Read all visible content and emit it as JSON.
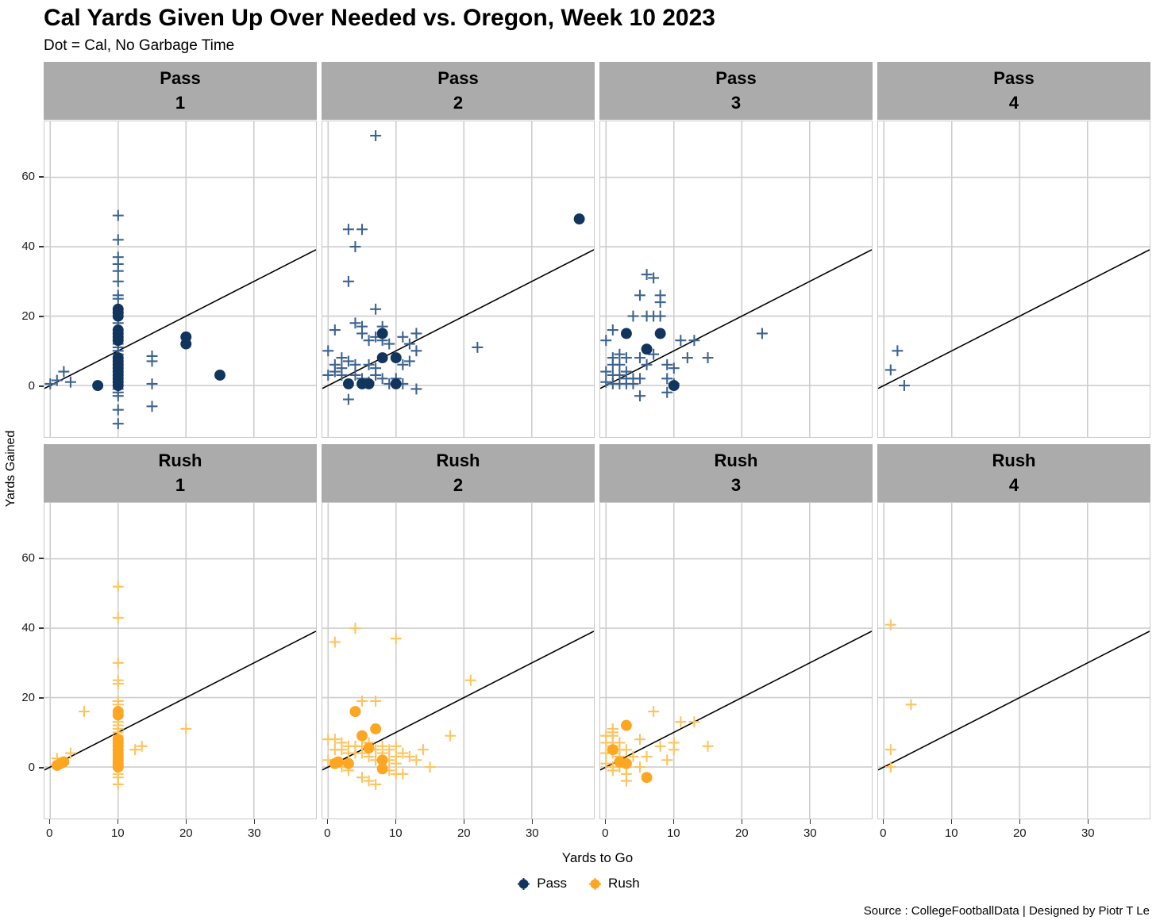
{
  "title": "Cal Yards Given Up Over Needed vs. Oregon, Week 10 2023",
  "subtitle": "Dot = Cal, No Garbage Time",
  "caption": "Source : CollegeFootballData | Designed by Piotr T Le",
  "colors": {
    "pass_dot": "#12355E",
    "pass_cross": "#3D6390",
    "rush_dot": "#FDA621",
    "rush_cross": "#FCC45F",
    "strip_bg": "#ABABAB",
    "grid": "#CDCDCD",
    "panel_border": "#C9C9C9",
    "ref_line": "#000000"
  },
  "legend": [
    {
      "label": "Pass",
      "color": "#12355E"
    },
    {
      "label": "Rush",
      "color": "#FDA621"
    }
  ],
  "chart_data": {
    "type": "scatter",
    "title": "Cal Yards Given Up Over Needed vs. Oregon, Week 10 2023",
    "subtitle": "Dot = Cal, No Garbage Time",
    "xlabel": "Yards to Go",
    "ylabel": "Yards Gained",
    "x_ticks": [
      0,
      10,
      20,
      30
    ],
    "y_ticks": [
      0,
      20,
      40,
      60
    ],
    "x_domain": [
      -0.85,
      39.15
    ],
    "y_domain": [
      -14.8,
      76.1
    ],
    "reference_line": "y = x (identity, yards gained = yards to go)",
    "marker_legend": "cross = all plays, dot = Cal no-garbage-time plays",
    "grid": true,
    "facet_rows": [
      "Pass",
      "Rush"
    ],
    "facet_cols": [
      "1",
      "2",
      "3",
      "4"
    ],
    "facets": [
      {
        "group": "Pass",
        "down": "1",
        "crosses": [
          [
            0,
            0.5
          ],
          [
            1,
            1.5
          ],
          [
            2,
            4
          ],
          [
            3,
            1
          ],
          [
            10,
            49
          ],
          [
            10,
            42
          ],
          [
            10,
            37
          ],
          [
            10,
            35
          ],
          [
            10,
            33
          ],
          [
            10,
            30
          ],
          [
            10,
            26
          ],
          [
            10,
            25
          ],
          [
            10,
            18
          ],
          [
            10,
            12
          ],
          [
            10,
            11
          ],
          [
            10,
            10
          ],
          [
            10,
            9
          ],
          [
            10,
            -1
          ],
          [
            10,
            -2
          ],
          [
            10,
            -3
          ],
          [
            10,
            -7
          ],
          [
            10,
            -11
          ],
          [
            15,
            8.5
          ],
          [
            15,
            7
          ],
          [
            15,
            0.5
          ],
          [
            15,
            -6
          ]
        ],
        "dots": [
          [
            7,
            0
          ],
          [
            10,
            22
          ],
          [
            10,
            21
          ],
          [
            10,
            20
          ],
          [
            10,
            16
          ],
          [
            10,
            15
          ],
          [
            10,
            14
          ],
          [
            10,
            13
          ],
          [
            10,
            8
          ],
          [
            10,
            7
          ],
          [
            10,
            6
          ],
          [
            10,
            5
          ],
          [
            10,
            4
          ],
          [
            10,
            3
          ],
          [
            10,
            2
          ],
          [
            10,
            1
          ],
          [
            10,
            0
          ],
          [
            20,
            14
          ],
          [
            20,
            12
          ],
          [
            25,
            3
          ]
        ]
      },
      {
        "group": "Pass",
        "down": "2",
        "crosses": [
          [
            7,
            72
          ],
          [
            3,
            45
          ],
          [
            5,
            45
          ],
          [
            4,
            40
          ],
          [
            3,
            30
          ],
          [
            7,
            22
          ],
          [
            1,
            16
          ],
          [
            4,
            18
          ],
          [
            5,
            17
          ],
          [
            5,
            15
          ],
          [
            6,
            13
          ],
          [
            7,
            14
          ],
          [
            8,
            17
          ],
          [
            8,
            13
          ],
          [
            9,
            12
          ],
          [
            11,
            14
          ],
          [
            12,
            12
          ],
          [
            13,
            15
          ],
          [
            13,
            10
          ],
          [
            22,
            11
          ],
          [
            0,
            10
          ],
          [
            0,
            3
          ],
          [
            1,
            6
          ],
          [
            1,
            4
          ],
          [
            2,
            5
          ],
          [
            2,
            3
          ],
          [
            2,
            8
          ],
          [
            3,
            7
          ],
          [
            4,
            6
          ],
          [
            4,
            3
          ],
          [
            5,
            2
          ],
          [
            6,
            1
          ],
          [
            6,
            6
          ],
          [
            7,
            5
          ],
          [
            7,
            3
          ],
          [
            8,
            2
          ],
          [
            9,
            0.5
          ],
          [
            10,
            2
          ],
          [
            11,
            6
          ],
          [
            11,
            0.5
          ],
          [
            12,
            7
          ],
          [
            3,
            -4
          ],
          [
            13,
            -1
          ]
        ],
        "dots": [
          [
            3,
            0.5
          ],
          [
            5,
            0.5
          ],
          [
            6,
            0.5
          ],
          [
            8,
            15
          ],
          [
            8,
            8
          ],
          [
            10,
            8
          ],
          [
            10,
            0.5
          ],
          [
            37,
            48
          ]
        ]
      },
      {
        "group": "Pass",
        "down": "3",
        "crosses": [
          [
            6,
            32
          ],
          [
            7,
            31
          ],
          [
            5,
            26
          ],
          [
            8,
            26
          ],
          [
            8,
            24
          ],
          [
            4,
            20
          ],
          [
            6,
            20
          ],
          [
            7,
            20
          ],
          [
            8,
            20
          ],
          [
            1,
            16
          ],
          [
            0,
            13
          ],
          [
            23,
            15
          ],
          [
            2,
            9
          ],
          [
            1,
            8
          ],
          [
            3,
            8
          ],
          [
            1,
            6
          ],
          [
            2,
            6
          ],
          [
            5,
            8
          ],
          [
            6,
            6
          ],
          [
            7,
            9
          ],
          [
            9,
            6
          ],
          [
            11,
            13
          ],
          [
            13,
            13
          ],
          [
            12,
            8
          ],
          [
            15,
            8
          ],
          [
            10,
            5
          ],
          [
            9,
            2
          ],
          [
            0,
            4
          ],
          [
            1,
            3
          ],
          [
            2,
            3
          ],
          [
            3,
            4
          ],
          [
            3,
            2
          ],
          [
            4,
            2
          ],
          [
            5,
            2
          ],
          [
            0,
            1
          ],
          [
            1,
            0.5
          ],
          [
            2,
            0.5
          ],
          [
            3,
            0.5
          ],
          [
            4,
            0.5
          ],
          [
            5,
            -3
          ],
          [
            9,
            -2
          ],
          [
            10,
            0.5
          ]
        ],
        "dots": [
          [
            3,
            15
          ],
          [
            8,
            15
          ],
          [
            6,
            10.5
          ],
          [
            10,
            0
          ]
        ]
      },
      {
        "group": "Pass",
        "down": "4",
        "crosses": [
          [
            2,
            10
          ],
          [
            1,
            4.5
          ],
          [
            3,
            0
          ]
        ],
        "dots": []
      },
      {
        "group": "Rush",
        "down": "1",
        "crosses": [
          [
            10,
            52
          ],
          [
            10,
            43
          ],
          [
            10,
            30
          ],
          [
            10,
            25
          ],
          [
            10,
            24
          ],
          [
            10,
            19
          ],
          [
            10,
            18
          ],
          [
            10,
            13
          ],
          [
            10,
            12
          ],
          [
            10,
            11
          ],
          [
            10,
            10
          ],
          [
            10,
            9
          ],
          [
            10,
            -2
          ],
          [
            10,
            -3
          ],
          [
            10,
            -5
          ],
          [
            5,
            16
          ],
          [
            1,
            2.5
          ],
          [
            3,
            4
          ],
          [
            1,
            0.5
          ],
          [
            12.5,
            5
          ],
          [
            13.5,
            6
          ],
          [
            20,
            11
          ]
        ],
        "dots": [
          [
            1,
            0.5
          ],
          [
            1.5,
            1
          ],
          [
            2,
            1.5
          ],
          [
            10,
            16
          ],
          [
            10,
            15
          ],
          [
            10,
            8
          ],
          [
            10,
            7
          ],
          [
            10,
            6
          ],
          [
            10,
            5
          ],
          [
            10,
            4
          ],
          [
            10,
            3
          ],
          [
            10,
            2
          ],
          [
            10,
            1
          ],
          [
            10,
            0.5
          ],
          [
            10,
            0
          ]
        ]
      },
      {
        "group": "Rush",
        "down": "2",
        "crosses": [
          [
            1,
            36
          ],
          [
            4,
            40
          ],
          [
            10,
            37
          ],
          [
            21,
            25
          ],
          [
            18,
            9
          ],
          [
            5,
            19
          ],
          [
            7,
            19
          ],
          [
            0,
            8
          ],
          [
            1,
            8
          ],
          [
            2,
            7
          ],
          [
            1,
            5
          ],
          [
            2,
            5
          ],
          [
            3,
            6
          ],
          [
            3,
            4
          ],
          [
            4,
            6
          ],
          [
            4,
            4
          ],
          [
            5,
            6
          ],
          [
            5,
            4
          ],
          [
            6,
            7
          ],
          [
            6,
            3
          ],
          [
            7,
            5
          ],
          [
            7,
            2
          ],
          [
            8,
            6
          ],
          [
            8,
            4
          ],
          [
            9,
            5
          ],
          [
            9,
            2
          ],
          [
            10,
            6
          ],
          [
            10,
            3
          ],
          [
            10,
            1
          ],
          [
            11,
            4
          ],
          [
            12,
            3
          ],
          [
            13,
            2
          ],
          [
            14,
            5
          ],
          [
            9,
            -1
          ],
          [
            10,
            -2
          ],
          [
            11,
            -2
          ],
          [
            5,
            -3
          ],
          [
            6,
            -4
          ],
          [
            7,
            -5
          ],
          [
            15,
            0
          ],
          [
            0,
            2
          ],
          [
            2,
            0
          ],
          [
            3,
            -1
          ]
        ],
        "dots": [
          [
            1,
            1
          ],
          [
            1.5,
            1.5
          ],
          [
            3,
            1
          ],
          [
            4,
            16
          ],
          [
            5,
            9
          ],
          [
            6,
            5.5
          ],
          [
            7,
            11
          ],
          [
            8,
            2
          ],
          [
            8,
            -0.5
          ]
        ]
      },
      {
        "group": "Rush",
        "down": "3",
        "crosses": [
          [
            7,
            16
          ],
          [
            11,
            13
          ],
          [
            13,
            13
          ],
          [
            1,
            11
          ],
          [
            1,
            10
          ],
          [
            0,
            9
          ],
          [
            1,
            9
          ],
          [
            0,
            7
          ],
          [
            1,
            7
          ],
          [
            2,
            7
          ],
          [
            1,
            6
          ],
          [
            2,
            5
          ],
          [
            5,
            8
          ],
          [
            3,
            5
          ],
          [
            0,
            4
          ],
          [
            1,
            4
          ],
          [
            2,
            3
          ],
          [
            4,
            3
          ],
          [
            6,
            3
          ],
          [
            8,
            6
          ],
          [
            10,
            7
          ],
          [
            10,
            5
          ],
          [
            15,
            6
          ],
          [
            9,
            2
          ],
          [
            0,
            1
          ],
          [
            1,
            0
          ],
          [
            2,
            0
          ],
          [
            5,
            0
          ],
          [
            1,
            -1
          ],
          [
            3,
            -2
          ],
          [
            3,
            -4
          ]
        ],
        "dots": [
          [
            3,
            12
          ],
          [
            1,
            5
          ],
          [
            2,
            1.5
          ],
          [
            3,
            1
          ],
          [
            6,
            -3
          ]
        ]
      },
      {
        "group": "Rush",
        "down": "4",
        "crosses": [
          [
            1,
            41
          ],
          [
            4,
            18
          ],
          [
            1,
            5
          ],
          [
            1,
            0
          ]
        ],
        "dots": []
      }
    ]
  }
}
